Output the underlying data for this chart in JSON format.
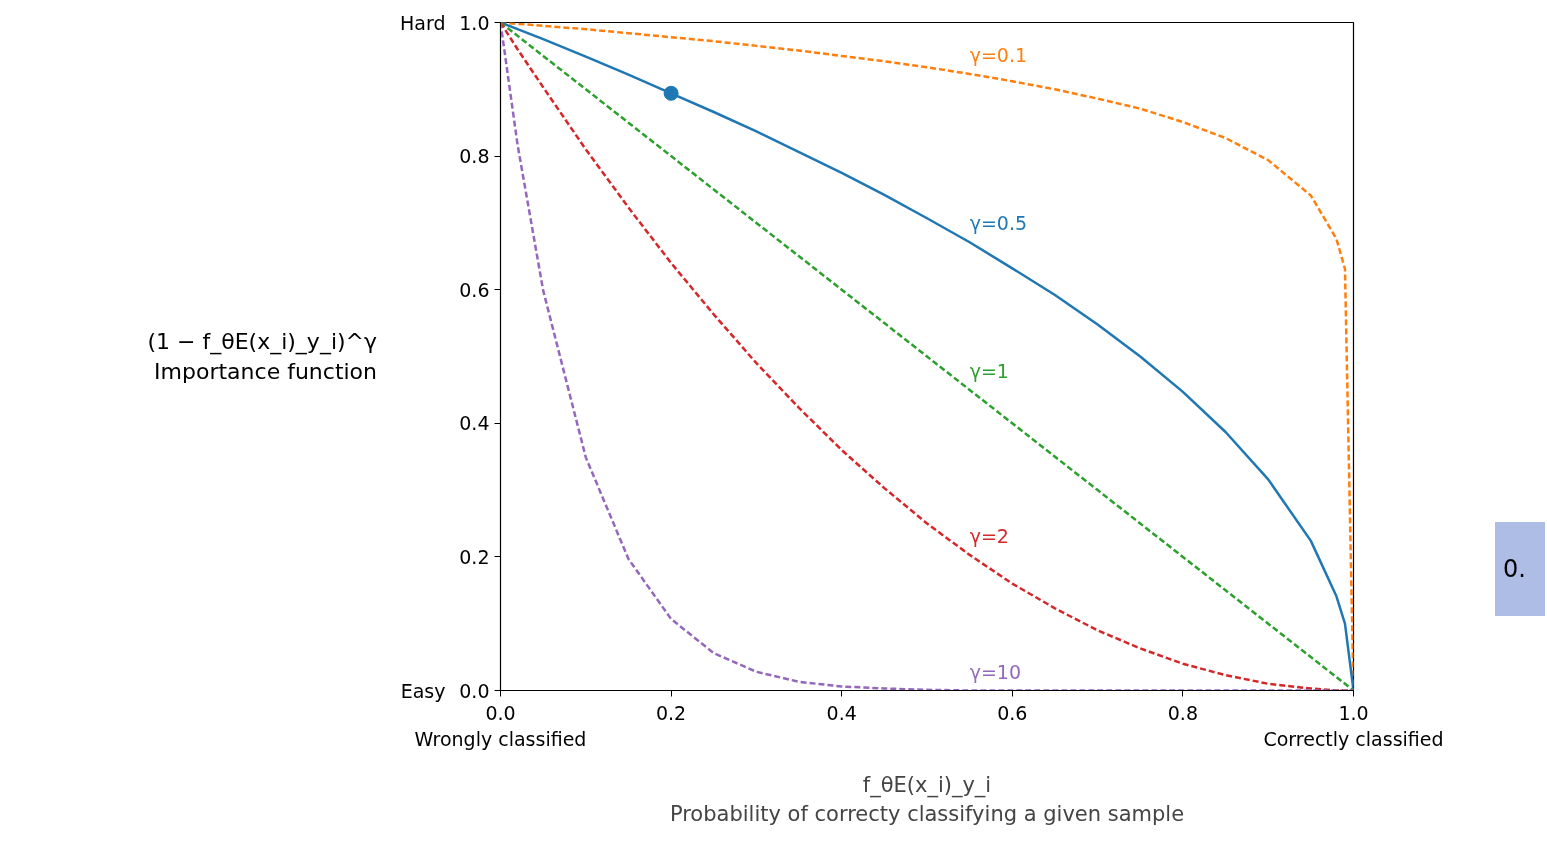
{
  "chart_data": {
    "type": "line",
    "xlabel": "f_θE(x_i)_y_i\nProbability of correcty classifying a given sample",
    "ylabel": "(1 − f_θE(x_i)_y_i)^γ\nImportance function",
    "x": [
      0,
      0.02,
      0.05,
      0.1,
      0.15,
      0.2,
      0.25,
      0.3,
      0.35,
      0.4,
      0.45,
      0.5,
      0.55,
      0.6,
      0.65,
      0.7,
      0.75,
      0.8,
      0.85,
      0.9,
      0.95,
      0.98,
      0.99,
      1.0
    ],
    "xlim": [
      0,
      1
    ],
    "ylim": [
      0,
      1
    ],
    "xticks": [
      {
        "value": 0,
        "label": "0.0\nWrongly classified"
      },
      {
        "value": 0.2,
        "label": "0.2"
      },
      {
        "value": 0.4,
        "label": "0.4"
      },
      {
        "value": 0.6,
        "label": "0.6"
      },
      {
        "value": 0.8,
        "label": "0.8"
      },
      {
        "value": 1,
        "label": "1.0\nCorrectly classified"
      }
    ],
    "yticks": [
      {
        "value": 0,
        "label": "0.0"
      },
      {
        "value": 0.2,
        "label": "0.2"
      },
      {
        "value": 0.4,
        "label": "0.4"
      },
      {
        "value": 0.6,
        "label": "0.6"
      },
      {
        "value": 0.8,
        "label": "0.8"
      },
      {
        "value": 1,
        "label": "1.0"
      }
    ],
    "line_style": "dashed",
    "grid": false,
    "series": [
      {
        "name": "γ=0.1",
        "color": "#ff7f0e",
        "values": [
          1,
          0.998,
          0.995,
          0.99,
          0.984,
          0.978,
          0.972,
          0.965,
          0.958,
          0.95,
          0.942,
          0.933,
          0.923,
          0.912,
          0.9,
          0.886,
          0.871,
          0.851,
          0.827,
          0.794,
          0.741,
          0.676,
          0.631,
          0
        ]
      },
      {
        "name": "γ=0.5",
        "color": "#1f77b4",
        "line_style": "solid",
        "values": [
          1,
          0.99,
          0.975,
          0.949,
          0.922,
          0.894,
          0.866,
          0.837,
          0.806,
          0.775,
          0.742,
          0.707,
          0.671,
          0.632,
          0.592,
          0.548,
          0.5,
          0.447,
          0.387,
          0.316,
          0.224,
          0.141,
          0.1,
          0
        ]
      },
      {
        "name": "γ=1",
        "color": "#2ca02c",
        "values": [
          1,
          0.98,
          0.95,
          0.9,
          0.85,
          0.8,
          0.75,
          0.7,
          0.65,
          0.6,
          0.55,
          0.5,
          0.45,
          0.4,
          0.35,
          0.3,
          0.25,
          0.2,
          0.15,
          0.1,
          0.05,
          0.02,
          0.01,
          0
        ]
      },
      {
        "name": "γ=2",
        "color": "#d62728",
        "values": [
          1,
          0.96,
          0.903,
          0.81,
          0.723,
          0.64,
          0.563,
          0.49,
          0.423,
          0.36,
          0.303,
          0.25,
          0.203,
          0.16,
          0.123,
          0.09,
          0.063,
          0.04,
          0.023,
          0.01,
          0.003,
          0,
          0,
          0
        ]
      },
      {
        "name": "γ=10",
        "color": "#9467bd",
        "values": [
          1,
          0.817,
          0.599,
          0.349,
          0.197,
          0.107,
          0.056,
          0.028,
          0.013,
          0.006,
          0.003,
          0.001,
          0,
          0,
          0,
          0,
          0,
          0,
          0,
          0,
          0,
          0,
          0,
          0
        ]
      },
      {
        "type": "scatter",
        "marker": "circle",
        "color": "#1f77b4",
        "x": [
          0.2
        ],
        "values": [
          0.894
        ]
      }
    ],
    "annotations": [
      "Hard",
      "Easy",
      "0."
    ]
  }
}
